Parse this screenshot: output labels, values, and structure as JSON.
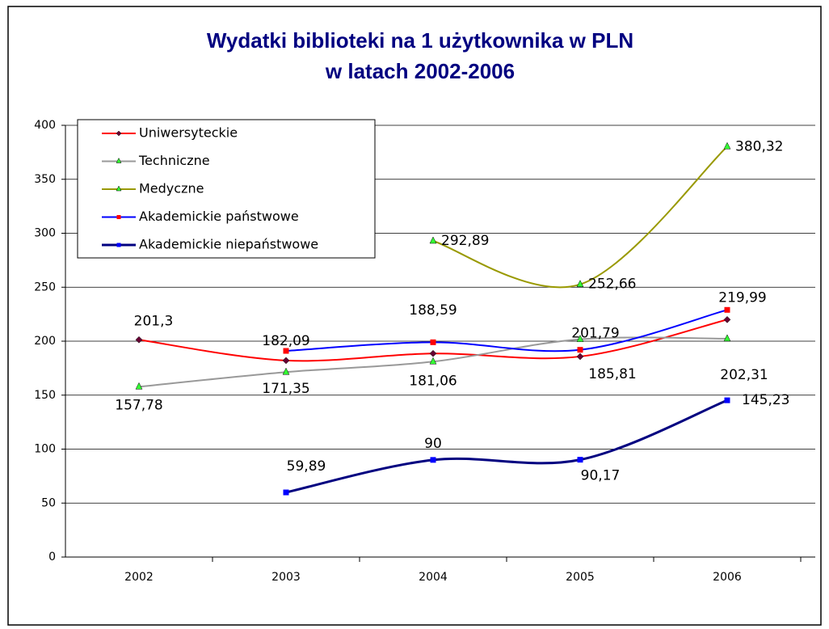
{
  "chart_data": {
    "type": "line",
    "title": [
      "Wydatki biblioteki na 1 użytkownika w PLN",
      "w latach 2002-2006"
    ],
    "categories": [
      "2002",
      "2003",
      "2004",
      "2005",
      "2006"
    ],
    "ylim": [
      0,
      400
    ],
    "yticks": [
      0,
      50,
      100,
      150,
      200,
      250,
      300,
      350,
      400
    ],
    "grid": true,
    "legend": "top-left",
    "series": [
      {
        "name": "Uniwersyteckie",
        "color": "#ff0000",
        "marker_color": "#660033",
        "marker": "diamond",
        "values": [
          201.3,
          182.09,
          188.59,
          185.81,
          219.99
        ],
        "value_labels": [
          "201,3",
          "182,09",
          "188,59",
          "185,81",
          "219,99"
        ]
      },
      {
        "name": "Techniczne",
        "color": "#999999",
        "marker_color": "#33ff33",
        "marker": "triangle",
        "values": [
          157.78,
          171.35,
          181.06,
          201.79,
          202.31
        ],
        "value_labels": [
          "157,78",
          "171,35",
          "181,06",
          "201,79",
          "202,31"
        ]
      },
      {
        "name": "Medyczne",
        "color": "#999900",
        "marker_color": "#33ff33",
        "marker": "triangle",
        "values": [
          null,
          null,
          292.89,
          252.66,
          380.32
        ],
        "value_labels": [
          null,
          null,
          "292,89",
          "252,66",
          "380,32"
        ]
      },
      {
        "name": "Akademickie państwowe",
        "color": "#0000ff",
        "marker_color": "#ff0000",
        "marker": "square",
        "values": [
          null,
          191,
          199,
          192,
          229
        ]
      },
      {
        "name": "Akademickie niepaństwowe",
        "color": "#000080",
        "marker_color": "#0000ff",
        "marker": "square",
        "values": [
          null,
          59.89,
          90,
          90.17,
          145.23
        ],
        "value_labels": [
          null,
          "59,89",
          "90",
          "90,17",
          "145,23"
        ]
      }
    ]
  }
}
